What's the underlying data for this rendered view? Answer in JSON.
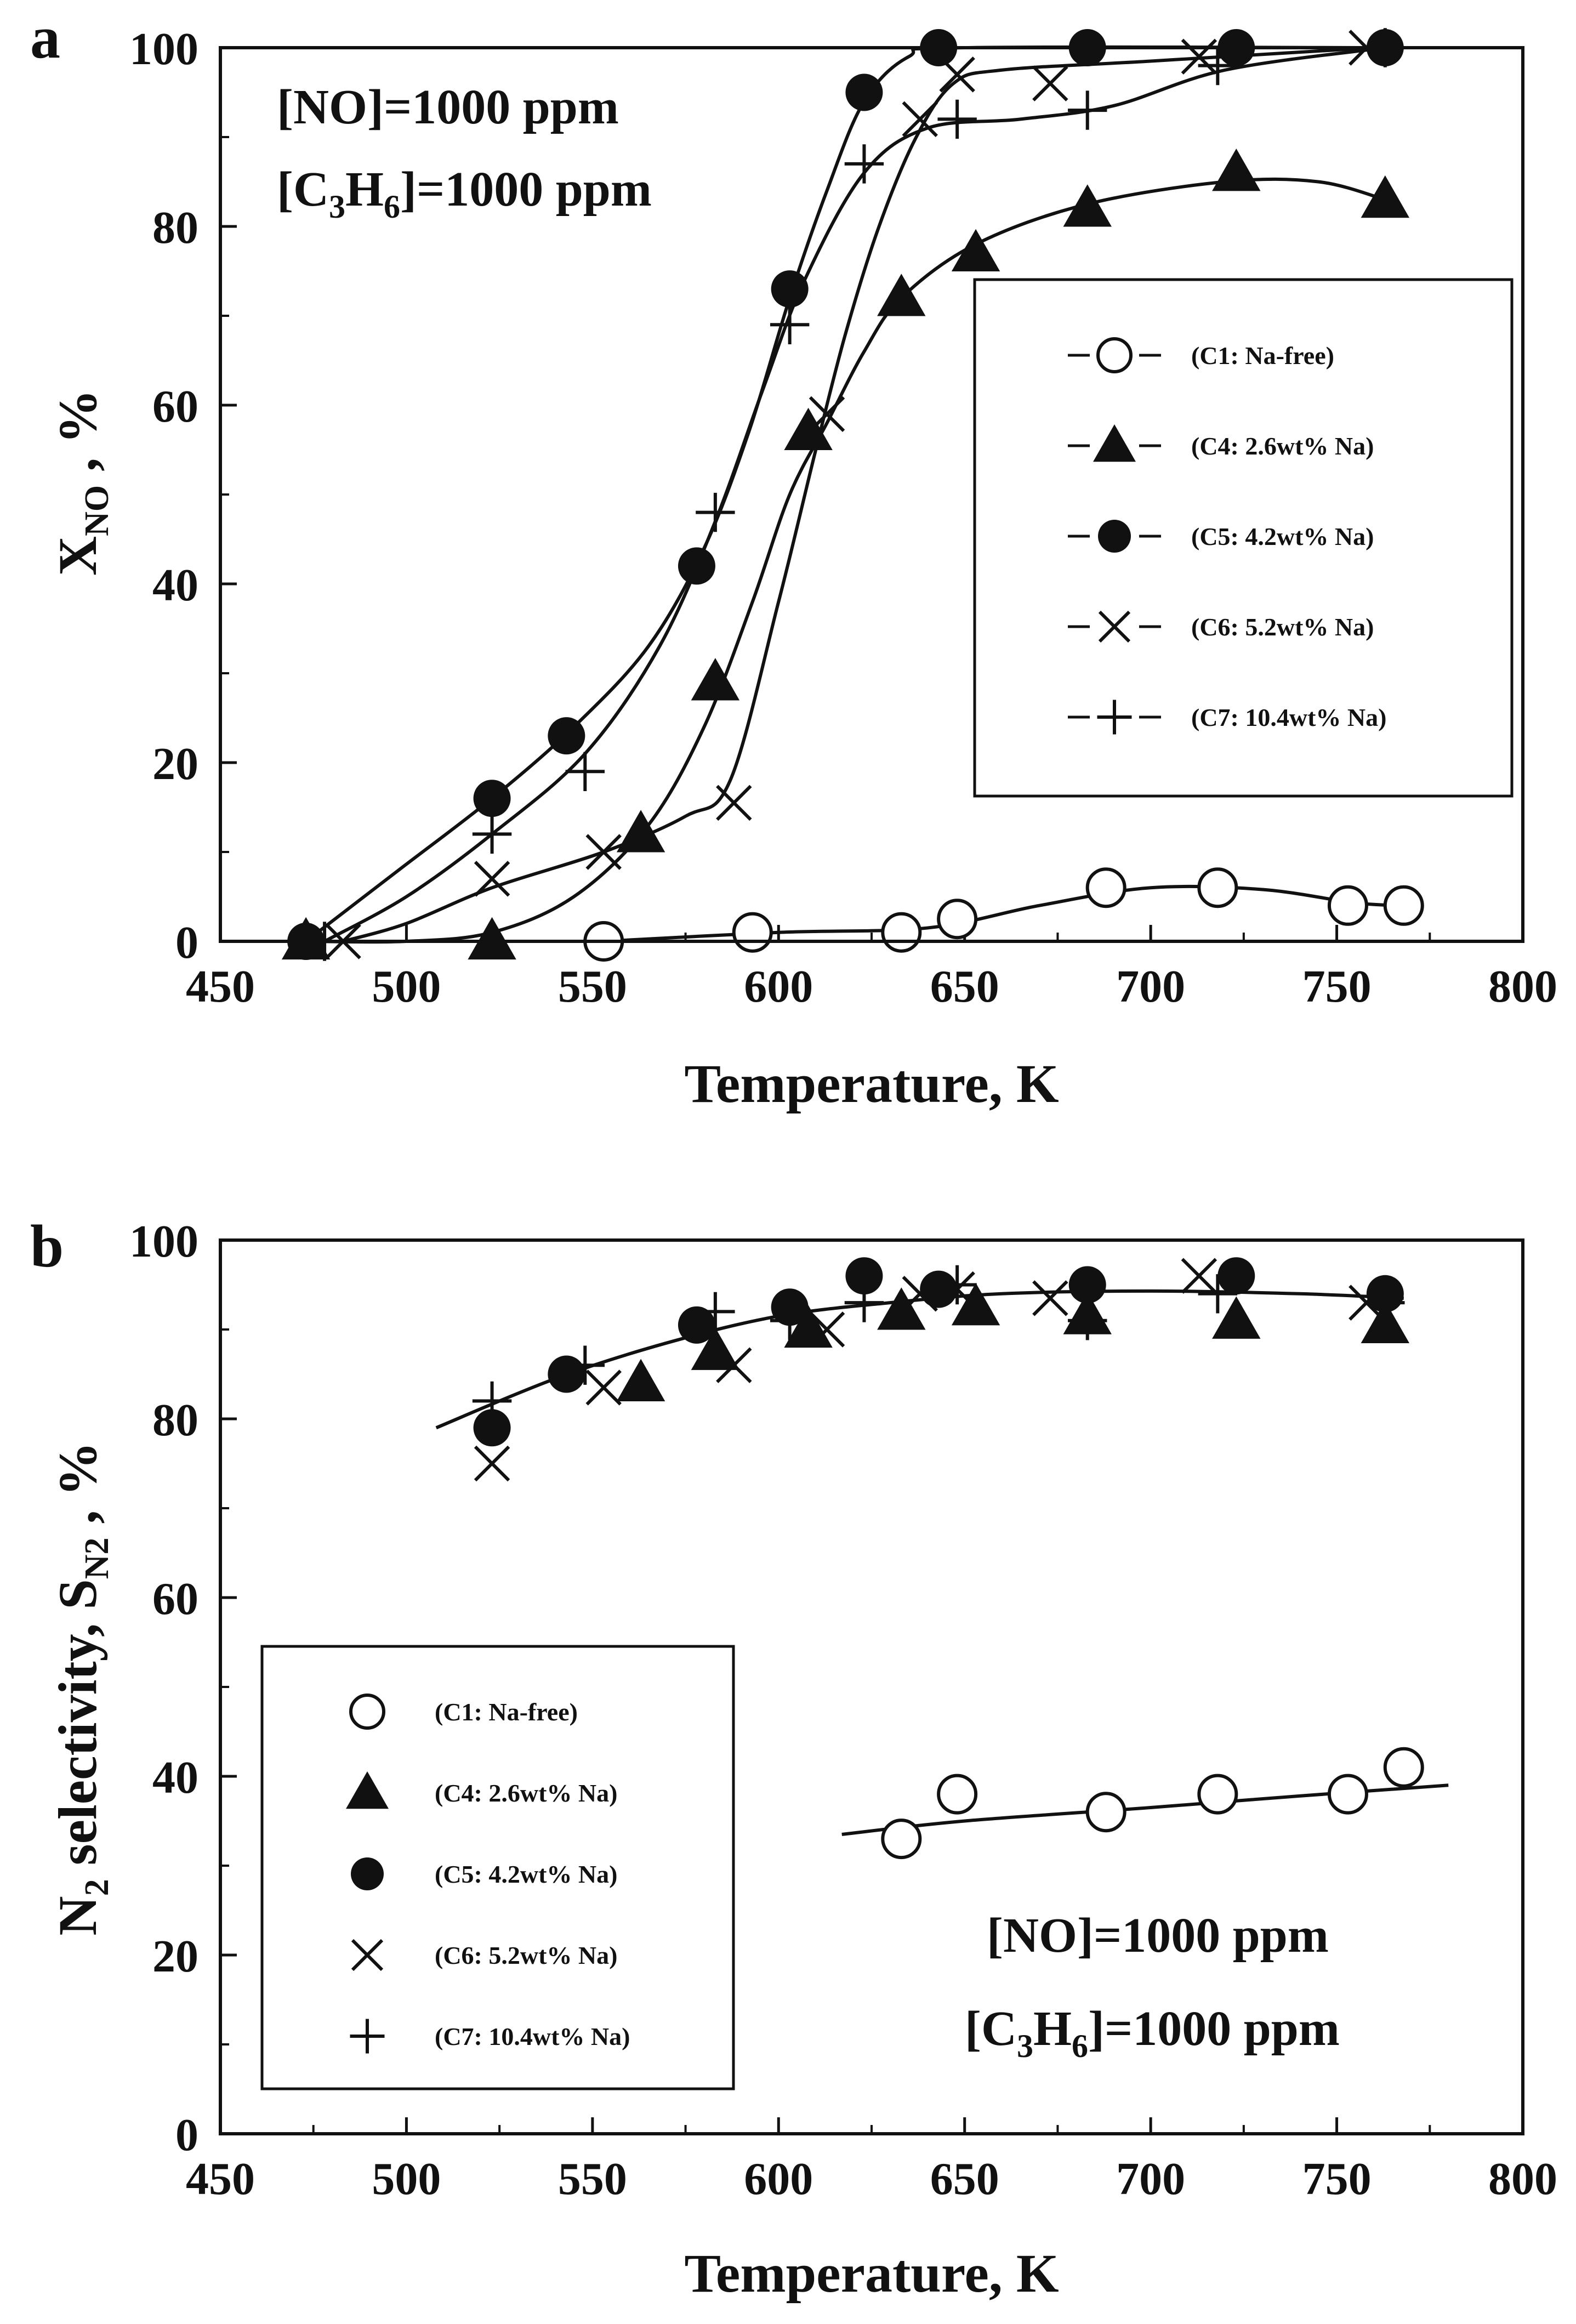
{
  "chart_data": [
    {
      "type": "line",
      "panel": "a",
      "xlabel": "Temperature, K",
      "ylabel": "X",
      "ylabel_sub": "NO",
      "ylabel_suffix": " , %",
      "xlim": [
        450,
        800
      ],
      "ylim": [
        0,
        100
      ],
      "xticks": [
        "450",
        "500",
        "550",
        "600",
        "650",
        "700",
        "750",
        "800"
      ],
      "yticks": [
        "0",
        "20",
        "40",
        "60",
        "80",
        "100"
      ],
      "conditions": {
        "line1": "[NO]=1000 ppm",
        "line2_parts": [
          "[C",
          "3",
          "H",
          "6",
          "]=1000 ppm"
        ]
      },
      "series": [
        {
          "name": "(C1: Na-free)",
          "marker": "open-circle",
          "points": [
            [
              553,
              0
            ],
            [
              593,
              1
            ],
            [
              633,
              1
            ],
            [
              648,
              2.5
            ],
            [
              688,
              6
            ],
            [
              718,
              6
            ],
            [
              753,
              4
            ],
            [
              768,
              4
            ]
          ],
          "curve": [
            [
              553,
              0
            ],
            [
              600,
              1
            ],
            [
              640,
              1.5
            ],
            [
              670,
              4
            ],
            [
              700,
              6
            ],
            [
              730,
              5.8
            ],
            [
              755,
              4.3
            ],
            [
              768,
              4
            ]
          ]
        },
        {
          "name": "(C4: 2.6wt% Na)",
          "marker": "filled-triangle",
          "points": [
            [
              473,
              0
            ],
            [
              523,
              0
            ],
            [
              563,
              12
            ],
            [
              583,
              29
            ],
            [
              608,
              57
            ],
            [
              633,
              72
            ],
            [
              653,
              77
            ],
            [
              683,
              82
            ],
            [
              723,
              86
            ],
            [
              763,
              83
            ]
          ],
          "curve": [
            [
              473,
              0
            ],
            [
              500,
              0
            ],
            [
              523,
              1
            ],
            [
              545,
              5
            ],
            [
              565,
              13
            ],
            [
              580,
              24
            ],
            [
              593,
              38
            ],
            [
              603,
              50
            ],
            [
              613,
              58
            ],
            [
              623,
              66
            ],
            [
              633,
              72
            ],
            [
              653,
              78
            ],
            [
              683,
              82.5
            ],
            [
              720,
              85
            ],
            [
              745,
              85
            ],
            [
              763,
              83
            ]
          ]
        },
        {
          "name": "(C5: 4.2wt% Na)",
          "marker": "filled-circle",
          "points": [
            [
              473,
              0
            ],
            [
              523,
              16
            ],
            [
              543,
              23
            ],
            [
              578,
              42
            ],
            [
              603,
              73
            ],
            [
              623,
              95
            ],
            [
              643,
              100
            ],
            [
              683,
              100
            ],
            [
              723,
              100
            ],
            [
              763,
              100
            ]
          ],
          "curve": [
            [
              473,
              0
            ],
            [
              498,
              8
            ],
            [
              523,
              16
            ],
            [
              545,
              24
            ],
            [
              565,
              33
            ],
            [
              580,
              44
            ],
            [
              592,
              57
            ],
            [
              603,
              72
            ],
            [
              613,
              84
            ],
            [
              623,
              94
            ],
            [
              635,
              99
            ],
            [
              650,
              100
            ],
            [
              763,
              100
            ]
          ]
        },
        {
          "name": "(C6: 5.2wt% Na)",
          "marker": "x",
          "points": [
            [
              483,
              0
            ],
            [
              523,
              7
            ],
            [
              553,
              10
            ],
            [
              588,
              15.5
            ],
            [
              613,
              59
            ],
            [
              638,
              92
            ],
            [
              648,
              97
            ],
            [
              673,
              96
            ],
            [
              713,
              99
            ],
            [
              758,
              100
            ]
          ],
          "curve": [
            [
              483,
              0
            ],
            [
              500,
              2
            ],
            [
              523,
              6
            ],
            [
              553,
              10
            ],
            [
              575,
              14
            ],
            [
              587,
              18
            ],
            [
              600,
              38
            ],
            [
              610,
              55
            ],
            [
              618,
              68
            ],
            [
              627,
              80
            ],
            [
              637,
              90
            ],
            [
              647,
              96
            ],
            [
              660,
              97.5
            ],
            [
              700,
              98.5
            ],
            [
              760,
              100
            ]
          ]
        },
        {
          "name": "(C7: 10.4wt% Na)",
          "marker": "plus",
          "points": [
            [
              478,
              0
            ],
            [
              523,
              12
            ],
            [
              548,
              19
            ],
            [
              583,
              48
            ],
            [
              603,
              69
            ],
            [
              623,
              87
            ],
            [
              648,
              92
            ],
            [
              683,
              93
            ],
            [
              718,
              98
            ],
            [
              763,
              100
            ]
          ],
          "curve": [
            [
              478,
              0
            ],
            [
              500,
              5
            ],
            [
              523,
              12
            ],
            [
              548,
              21
            ],
            [
              568,
              33
            ],
            [
              583,
              47
            ],
            [
              596,
              62
            ],
            [
              607,
              74
            ],
            [
              623,
              86
            ],
            [
              640,
              91
            ],
            [
              665,
              92
            ],
            [
              690,
              93.5
            ],
            [
              720,
              97.5
            ],
            [
              763,
              100
            ]
          ]
        }
      ],
      "legend_position": "center-right"
    },
    {
      "type": "scatter",
      "panel": "b",
      "xlabel": "Temperature, K",
      "ylabel_parts": [
        "N",
        "2",
        " selectivity, S",
        "N2",
        " , %"
      ],
      "xlim": [
        450,
        800
      ],
      "ylim": [
        0,
        100
      ],
      "xticks": [
        "450",
        "500",
        "550",
        "600",
        "650",
        "700",
        "750",
        "800"
      ],
      "yticks": [
        "0",
        "20",
        "40",
        "60",
        "80",
        "100"
      ],
      "conditions": {
        "line1": "[NO]=1000 ppm",
        "line2_parts": [
          "[C",
          "3",
          "H",
          "6",
          "]=1000 ppm"
        ]
      },
      "series": [
        {
          "name": "(C1: Na-free)",
          "marker": "open-circle",
          "points": [
            [
              633,
              33
            ],
            [
              648,
              38
            ],
            [
              688,
              36
            ],
            [
              718,
              38
            ],
            [
              753,
              38
            ],
            [
              768,
              41
            ]
          ]
        },
        {
          "name": "(C4: 2.6wt% Na)",
          "marker": "filled-triangle",
          "points": [
            [
              563,
              84
            ],
            [
              583,
              87.5
            ],
            [
              608,
              90
            ],
            [
              633,
              92
            ],
            [
              653,
              92.5
            ],
            [
              683,
              91.5
            ],
            [
              723,
              91
            ],
            [
              763,
              90.5
            ]
          ]
        },
        {
          "name": "(C5: 4.2wt% Na)",
          "marker": "filled-circle",
          "points": [
            [
              523,
              79
            ],
            [
              543,
              85
            ],
            [
              578,
              90.5
            ],
            [
              603,
              92.5
            ],
            [
              623,
              96
            ],
            [
              643,
              94.5
            ],
            [
              683,
              95
            ],
            [
              723,
              96
            ],
            [
              763,
              94
            ]
          ]
        },
        {
          "name": "(C6: 5.2wt% Na)",
          "marker": "x",
          "points": [
            [
              523,
              75
            ],
            [
              553,
              83.5
            ],
            [
              588,
              86
            ],
            [
              613,
              90
            ],
            [
              638,
              94
            ],
            [
              648,
              94.5
            ],
            [
              673,
              93.5
            ],
            [
              713,
              96
            ],
            [
              758,
              93
            ]
          ]
        },
        {
          "name": "(C7: 10.4wt% Na)",
          "marker": "plus",
          "points": [
            [
              523,
              82
            ],
            [
              548,
              86
            ],
            [
              583,
              92
            ],
            [
              603,
              91
            ],
            [
              623,
              93
            ],
            [
              648,
              95
            ],
            [
              683,
              91
            ],
            [
              718,
              94
            ],
            [
              763,
              93
            ]
          ]
        }
      ],
      "fit_curves": [
        [
          [
            508,
            79
          ],
          [
            540,
            84.5
          ],
          [
            570,
            88.5
          ],
          [
            600,
            91.5
          ],
          [
            630,
            93
          ],
          [
            660,
            94
          ],
          [
            700,
            94.3
          ],
          [
            740,
            94
          ],
          [
            768,
            93.5
          ]
        ],
        [
          [
            617,
            33.5
          ],
          [
            650,
            35
          ],
          [
            700,
            36.5
          ],
          [
            740,
            37.8
          ],
          [
            780,
            39
          ]
        ]
      ],
      "legend_position": "center-left"
    }
  ]
}
